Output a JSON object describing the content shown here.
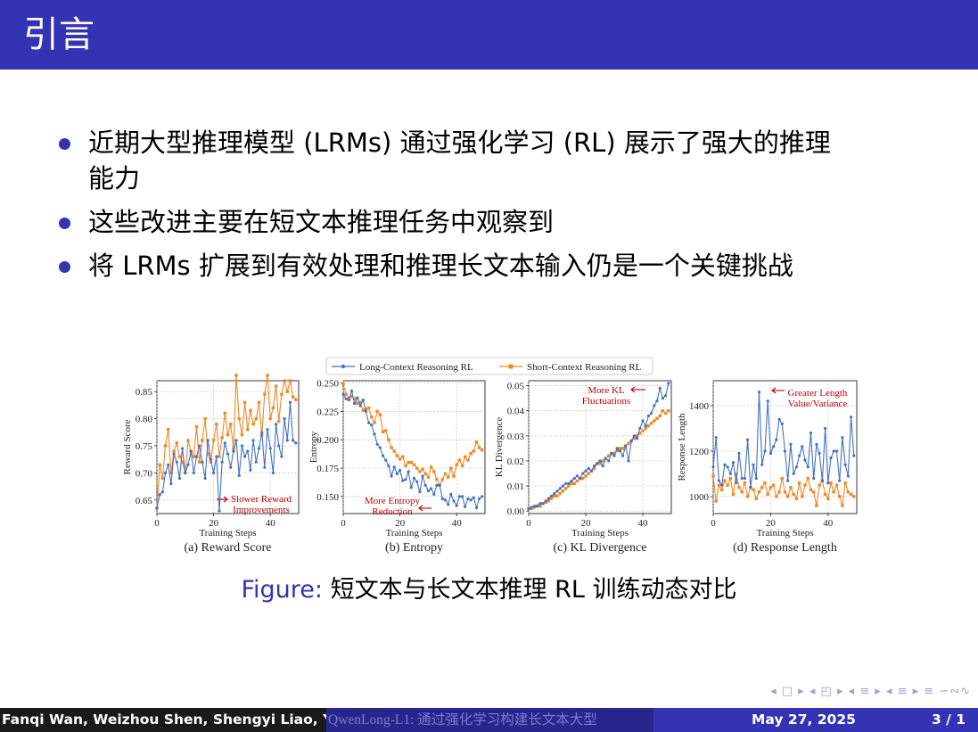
{
  "title": "引言",
  "bullets": [
    "近期大型推理模型 (LRMs) 通过强化学习 (RL) 展示了强大的推理能力",
    "这些改进主要在短文本推理任务中观察到",
    "将 LRMs 扩展到有效处理和推理长文本输入仍是一个关键挑战"
  ],
  "bullet_line2": "能力",
  "bullet_line1": "近期大型推理模型 (LRMs) 通过强化学习 (RL) 展示了强大的推理",
  "legend": {
    "long": "Long-Context Reasoning RL",
    "short": "Short-Context Reasoning RL"
  },
  "colors": {
    "long": "#4472c4",
    "short": "#f08a24",
    "annotation": "#c00000",
    "theme": "#3333b3"
  },
  "figure_caption_label": "Figure:",
  "figure_caption_text": "短文本与长文本推理 RL 训练动态对比",
  "nav_symbols": "◂ □ ▸ ◂ ◰ ▸ ◂ ≡ ▸ ◂ ≡ ▸  ≡  ∽∾∿",
  "footer": {
    "authors": "Fanqi Wan, Weizhou Shen, Shengyi Liao, Yin",
    "short_title": "QwenLong-L1: 通过强化学习构建长文本大型",
    "date": "May 27, 2025",
    "page": "3 / 1"
  },
  "chart_data": [
    {
      "type": "line",
      "caption": "(a) Reward Score",
      "xlabel": "Training Steps",
      "ylabel": "Reward Score",
      "xlim": [
        0,
        50
      ],
      "ylim": [
        0.625,
        0.87
      ],
      "xticks": [
        0,
        20,
        40
      ],
      "yticks": [
        0.65,
        0.7,
        0.75,
        0.8,
        0.85
      ],
      "annotation": [
        "Slower Reward",
        "Improvements"
      ],
      "series": [
        {
          "name": "Long-Context Reasoning RL",
          "values": [
            0.635,
            0.66,
            0.665,
            0.7,
            0.715,
            0.68,
            0.735,
            0.72,
            0.69,
            0.745,
            0.7,
            0.715,
            0.74,
            0.7,
            0.73,
            0.75,
            0.72,
            0.69,
            0.76,
            0.725,
            0.7,
            0.73,
            0.63,
            0.72,
            0.755,
            0.735,
            0.71,
            0.74,
            0.76,
            0.695,
            0.75,
            0.73,
            0.74,
            0.705,
            0.76,
            0.72,
            0.745,
            0.775,
            0.71,
            0.78,
            0.745,
            0.7,
            0.79,
            0.75,
            0.73,
            0.8,
            0.76,
            0.83,
            0.76,
            0.755
          ]
        },
        {
          "name": "Short-Context Reasoning RL",
          "values": [
            0.635,
            0.715,
            0.69,
            0.75,
            0.78,
            0.7,
            0.74,
            0.755,
            0.73,
            0.72,
            0.7,
            0.76,
            0.74,
            0.73,
            0.785,
            0.72,
            0.76,
            0.8,
            0.735,
            0.72,
            0.76,
            0.79,
            0.73,
            0.765,
            0.81,
            0.77,
            0.79,
            0.745,
            0.88,
            0.8,
            0.77,
            0.83,
            0.78,
            0.815,
            0.79,
            0.8,
            0.83,
            0.77,
            0.845,
            0.88,
            0.8,
            0.82,
            0.86,
            0.795,
            0.845,
            0.87,
            0.85,
            0.87,
            0.84,
            0.835
          ]
        }
      ]
    },
    {
      "type": "line",
      "caption": "(b) Entropy",
      "xlabel": "Training Steps",
      "ylabel": "Entropy",
      "xlim": [
        0,
        50
      ],
      "ylim": [
        0.135,
        0.252
      ],
      "xticks": [
        0,
        20,
        40
      ],
      "yticks": [
        0.15,
        0.175,
        0.2,
        0.225,
        0.25
      ],
      "annotation": [
        "More Entropy",
        "Reduction"
      ],
      "series": [
        {
          "name": "Long-Context Reasoning RL",
          "values": [
            0.24,
            0.236,
            0.235,
            0.243,
            0.232,
            0.237,
            0.23,
            0.235,
            0.225,
            0.215,
            0.213,
            0.205,
            0.196,
            0.193,
            0.186,
            0.182,
            0.177,
            0.168,
            0.176,
            0.17,
            0.173,
            0.164,
            0.165,
            0.172,
            0.158,
            0.166,
            0.163,
            0.154,
            0.168,
            0.16,
            0.155,
            0.157,
            0.152,
            0.16,
            0.16,
            0.148,
            0.147,
            0.143,
            0.152,
            0.146,
            0.142,
            0.15,
            0.15,
            0.141,
            0.148,
            0.147,
            0.149,
            0.14,
            0.148,
            0.15
          ]
        },
        {
          "name": "Short-Context Reasoning RL",
          "values": [
            0.249,
            0.24,
            0.237,
            0.238,
            0.236,
            0.232,
            0.233,
            0.226,
            0.227,
            0.228,
            0.22,
            0.215,
            0.225,
            0.222,
            0.207,
            0.208,
            0.2,
            0.193,
            0.19,
            0.186,
            0.183,
            0.185,
            0.177,
            0.18,
            0.18,
            0.178,
            0.175,
            0.172,
            0.174,
            0.17,
            0.167,
            0.176,
            0.172,
            0.165,
            0.16,
            0.165,
            0.17,
            0.167,
            0.175,
            0.168,
            0.178,
            0.182,
            0.177,
            0.185,
            0.182,
            0.188,
            0.19,
            0.198,
            0.193,
            0.191
          ]
        }
      ]
    },
    {
      "type": "line",
      "caption": "(c) KL Divergence",
      "xlabel": "Training Steps",
      "ylabel": "KL Divergence",
      "xlim": [
        0,
        50
      ],
      "ylim": [
        -0.001,
        0.052
      ],
      "xticks": [
        0,
        20,
        40
      ],
      "yticks": [
        0.0,
        0.01,
        0.02,
        0.03,
        0.04,
        0.05
      ],
      "annotation": [
        "More KL",
        "Fluctuations"
      ],
      "series": [
        {
          "name": "Long-Context Reasoning RL",
          "values": [
            0.001,
            0.0015,
            0.002,
            0.002,
            0.003,
            0.003,
            0.004,
            0.005,
            0.006,
            0.007,
            0.008,
            0.009,
            0.01,
            0.011,
            0.011,
            0.012,
            0.013,
            0.014,
            0.013,
            0.015,
            0.016,
            0.017,
            0.016,
            0.018,
            0.019,
            0.02,
            0.018,
            0.021,
            0.02,
            0.023,
            0.022,
            0.025,
            0.024,
            0.022,
            0.026,
            0.02,
            0.028,
            0.03,
            0.029,
            0.033,
            0.036,
            0.034,
            0.038,
            0.039,
            0.042,
            0.044,
            0.049,
            0.045,
            0.046,
            0.051
          ]
        },
        {
          "name": "Short-Context Reasoning RL",
          "values": [
            0.001,
            0.001,
            0.0015,
            0.002,
            0.002,
            0.003,
            0.0035,
            0.004,
            0.005,
            0.006,
            0.006,
            0.007,
            0.008,
            0.009,
            0.01,
            0.011,
            0.011,
            0.012,
            0.013,
            0.013,
            0.014,
            0.015,
            0.016,
            0.017,
            0.019,
            0.019,
            0.02,
            0.021,
            0.022,
            0.023,
            0.023,
            0.024,
            0.025,
            0.025,
            0.026,
            0.027,
            0.028,
            0.029,
            0.03,
            0.031,
            0.032,
            0.033,
            0.034,
            0.035,
            0.036,
            0.037,
            0.038,
            0.04,
            0.039,
            0.04
          ]
        }
      ]
    },
    {
      "type": "line",
      "caption": "(d) Response Length",
      "xlabel": "Training Steps",
      "ylabel": "Response Length",
      "xlim": [
        0,
        50
      ],
      "ylim": [
        925,
        1510
      ],
      "xticks": [
        0,
        20,
        40
      ],
      "yticks": [
        1000,
        1200,
        1400
      ],
      "annotation": [
        "Greater Length",
        "Value/Variance"
      ],
      "series": [
        {
          "name": "Long-Context Reasoning RL",
          "values": [
            1130,
            1260,
            1070,
            1050,
            1140,
            1130,
            1100,
            1150,
            1060,
            1190,
            1080,
            1080,
            1250,
            1040,
            1140,
            1080,
            1460,
            1140,
            1200,
            1420,
            1190,
            1220,
            1250,
            1340,
            1320,
            1200,
            1070,
            1230,
            1100,
            1130,
            1180,
            1220,
            1160,
            1130,
            1280,
            1080,
            1230,
            1190,
            1070,
            1300,
            1060,
            1170,
            1200,
            1200,
            1070,
            1260,
            1140,
            1090,
            1350,
            1180
          ]
        },
        {
          "name": "Short-Context Reasoning RL",
          "values": [
            1090,
            980,
            1050,
            1030,
            1070,
            1050,
            1080,
            1010,
            1100,
            1040,
            1020,
            1060,
            1000,
            1040,
            1030,
            990,
            1020,
            1040,
            1060,
            1010,
            1040,
            1050,
            1000,
            1020,
            1080,
            1020,
            1000,
            1040,
            1010,
            990,
            1060,
            1000,
            1050,
            1080,
            1030,
            1020,
            960,
            1050,
            1070,
            1010,
            990,
            1060,
            1020,
            1050,
            1000,
            960,
            1060,
            1020,
            1010,
            1000
          ]
        }
      ]
    }
  ]
}
